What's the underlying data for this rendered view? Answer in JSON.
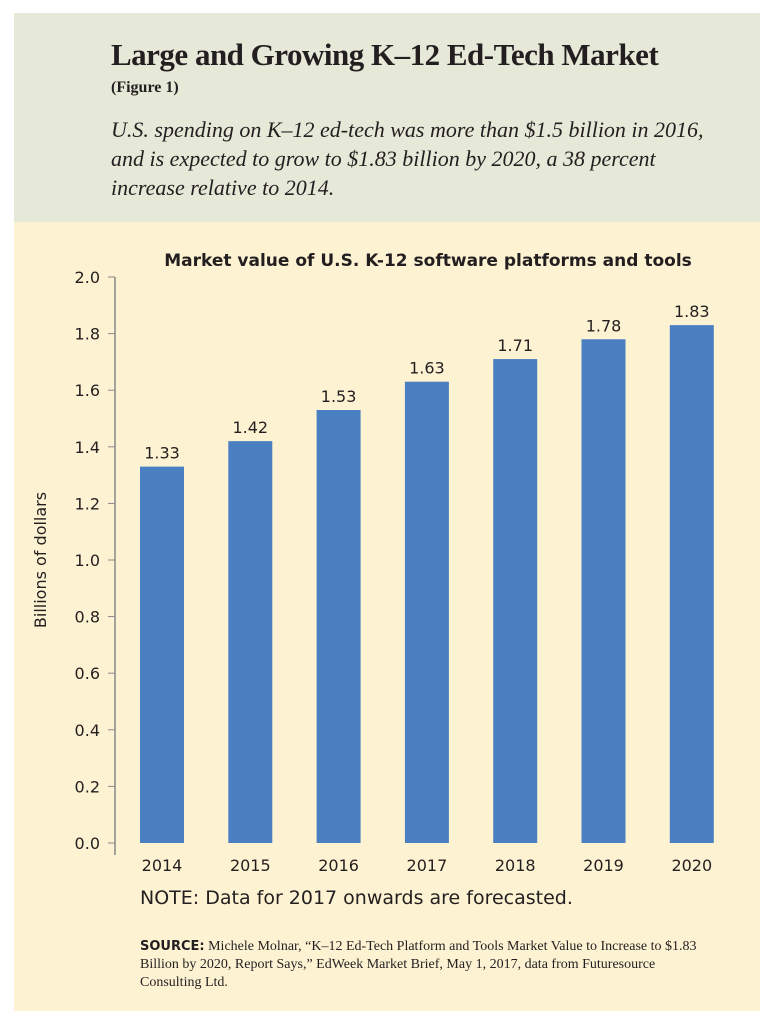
{
  "title": "Large and Growing K–12 Ed-Tech Market",
  "figure_label": "(Figure 1)",
  "subtitle": "U.S. spending on K–12 ed-tech was more than $1.5 billion in 2016, and is expected to grow to $1.83 billion by 2020, a 38 percent increase relative to 2014.",
  "note": "NOTE: Data for 2017 onwards are forecasted.",
  "source_label": "SOURCE:",
  "source_text": " Michele Molnar, “K–12 Ed-Tech Platform and Tools Market Value to Increase to $1.83 Billion by 2020, Report Says,” EdWeek Market Brief, May 1, 2017, data from Futuresource Consulting Ltd.",
  "chart_data": {
    "type": "bar",
    "title": "Market value of U.S. K-12 software platforms and tools",
    "xlabel": "",
    "ylabel": "Billions of dollars",
    "categories": [
      "2014",
      "2015",
      "2016",
      "2017",
      "2018",
      "2019",
      "2020"
    ],
    "values": [
      1.33,
      1.42,
      1.53,
      1.63,
      1.71,
      1.78,
      1.83
    ],
    "data_labels": [
      "1.33",
      "1.42",
      "1.53",
      "1.63",
      "1.71",
      "1.78",
      "1.83"
    ],
    "ylim": [
      0,
      2.0
    ],
    "yticks": [
      "0.0",
      "0.2",
      "0.4",
      "0.6",
      "0.8",
      "1.0",
      "1.2",
      "1.4",
      "1.6",
      "1.8",
      "2.0"
    ],
    "grid": false,
    "bar_color": "#4a80c2"
  }
}
